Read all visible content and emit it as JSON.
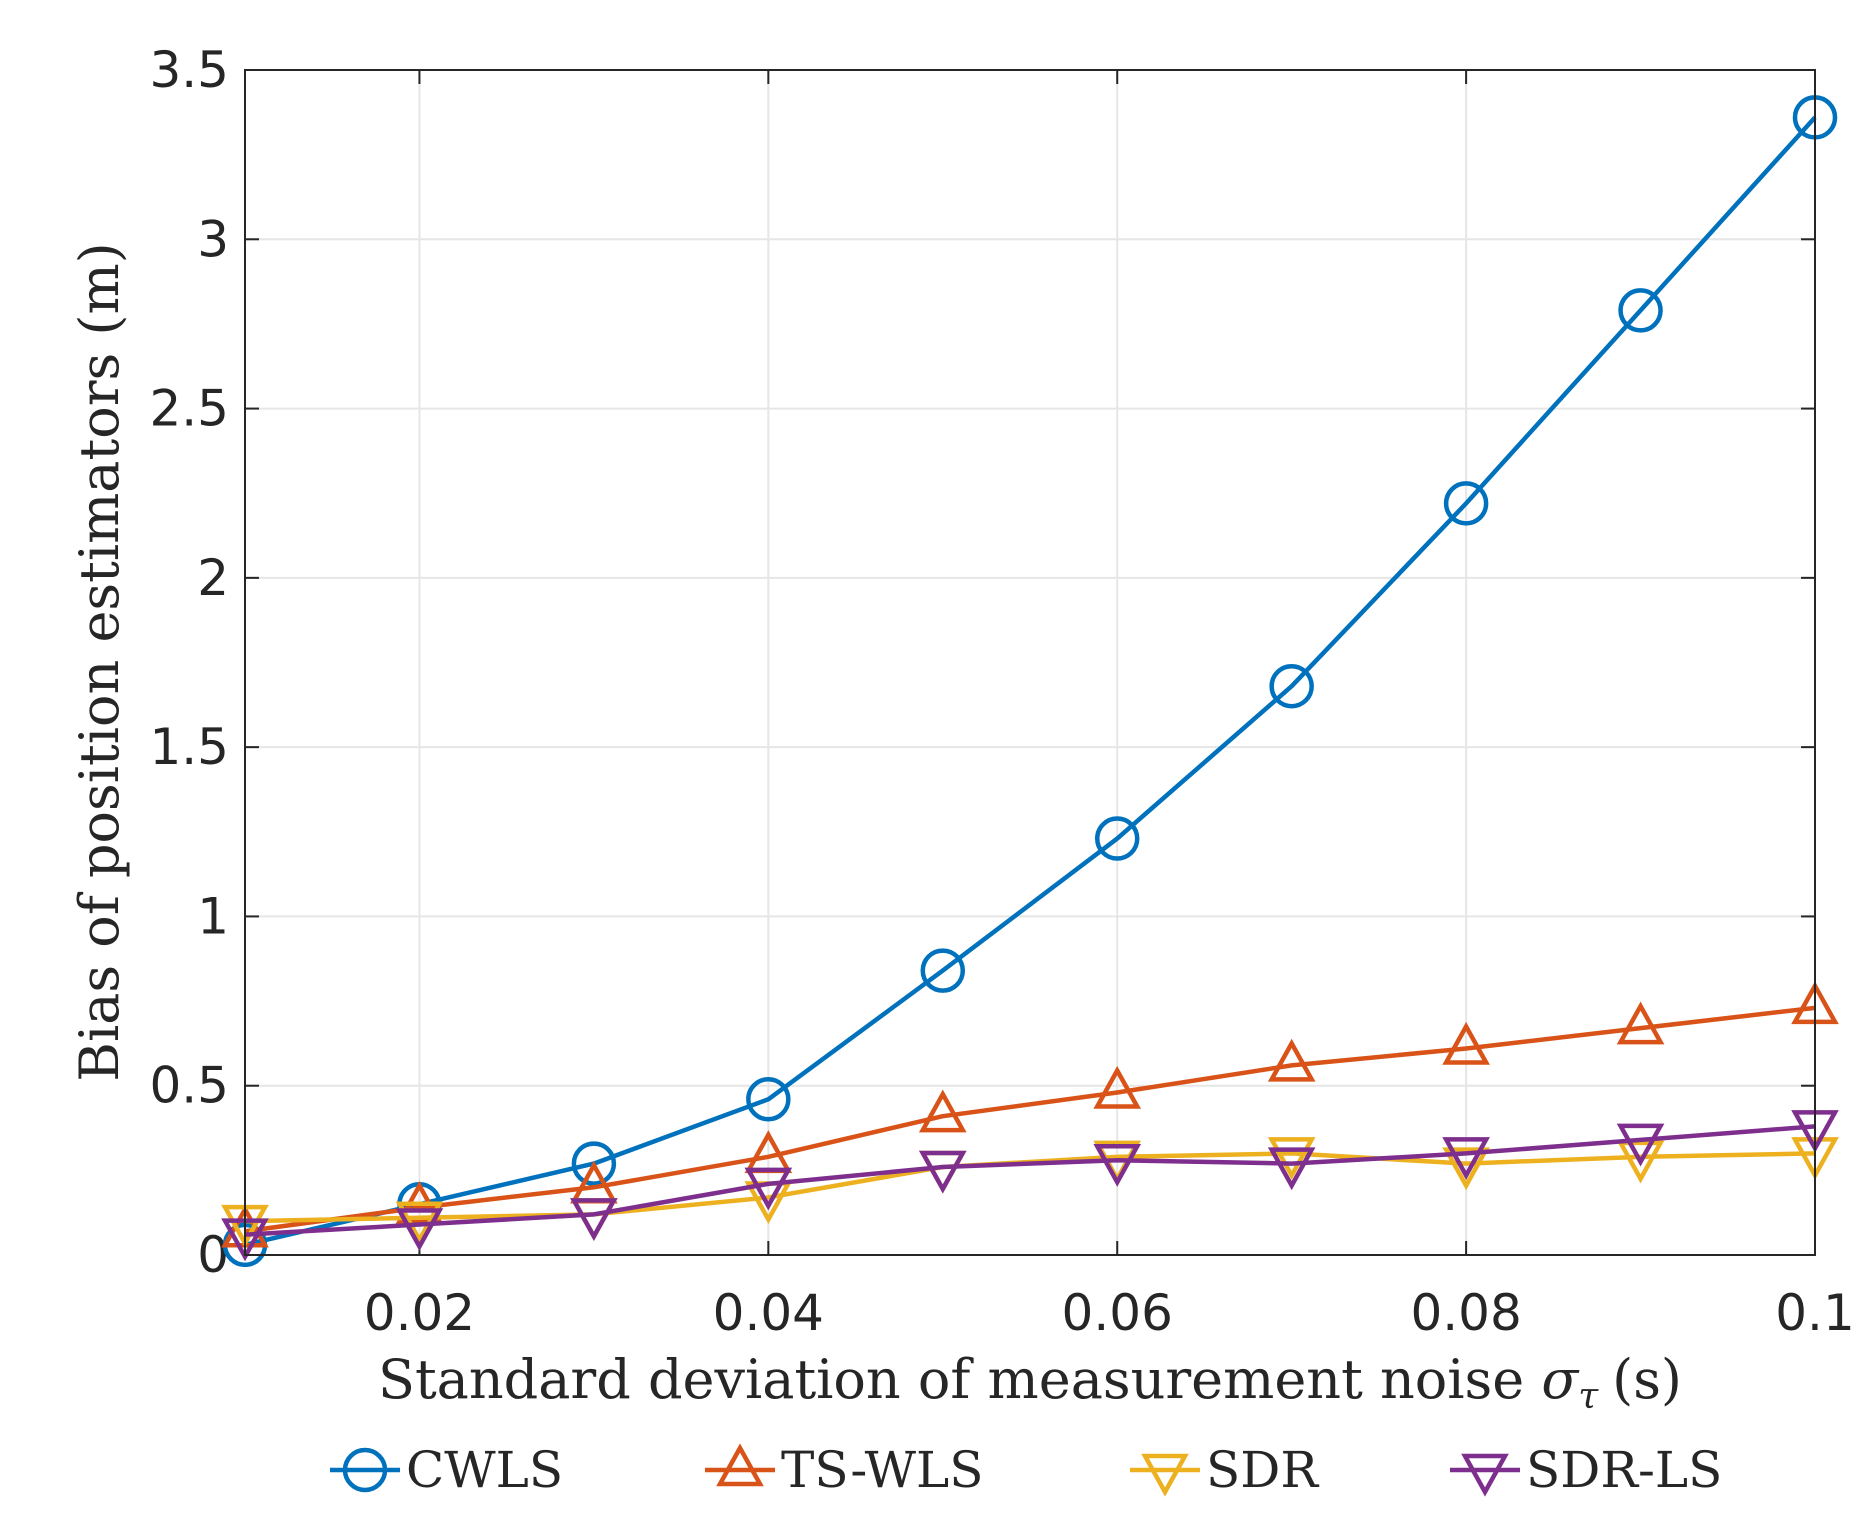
{
  "chart_data": {
    "type": "line",
    "title": "",
    "xlabel": "Standard deviation of measurement noise",
    "xlabel_symbol": "σ",
    "xlabel_subscript": "τ",
    "xlabel_unit": "(s)",
    "ylabel": "Bias of position estimators (m)",
    "xlim": [
      0.01,
      0.1
    ],
    "ylim": [
      0,
      3.5
    ],
    "xticks": [
      0.02,
      0.04,
      0.06,
      0.08,
      0.1
    ],
    "xtick_labels": [
      "0.02",
      "0.04",
      "0.06",
      "0.08",
      "0.1"
    ],
    "yticks": [
      0,
      0.5,
      1,
      1.5,
      2,
      2.5,
      3,
      3.5
    ],
    "ytick_labels": [
      "0",
      "0.5",
      "1",
      "1.5",
      "2",
      "2.5",
      "3",
      "3.5"
    ],
    "grid": true,
    "legend_position": "bottom",
    "x": [
      0.01,
      0.02,
      0.03,
      0.04,
      0.05,
      0.06,
      0.07,
      0.08,
      0.09,
      0.1
    ],
    "series": [
      {
        "name": "CWLS",
        "color": "#0072BD",
        "marker": "circle",
        "values": [
          0.03,
          0.15,
          0.27,
          0.46,
          0.84,
          1.23,
          1.68,
          2.22,
          2.79,
          3.36
        ]
      },
      {
        "name": "TS-WLS",
        "color": "#D95319",
        "marker": "triangle-up",
        "values": [
          0.07,
          0.14,
          0.2,
          0.29,
          0.41,
          0.48,
          0.56,
          0.61,
          0.67,
          0.73
        ]
      },
      {
        "name": "SDR",
        "color": "#EDB120",
        "marker": "triangle-down",
        "values": [
          0.1,
          0.11,
          0.12,
          0.17,
          0.26,
          0.29,
          0.3,
          0.27,
          0.29,
          0.3
        ]
      },
      {
        "name": "SDR-LS",
        "color": "#7E2F8E",
        "marker": "triangle-down",
        "values": [
          0.06,
          0.09,
          0.12,
          0.21,
          0.26,
          0.28,
          0.27,
          0.3,
          0.34,
          0.38
        ]
      }
    ]
  }
}
